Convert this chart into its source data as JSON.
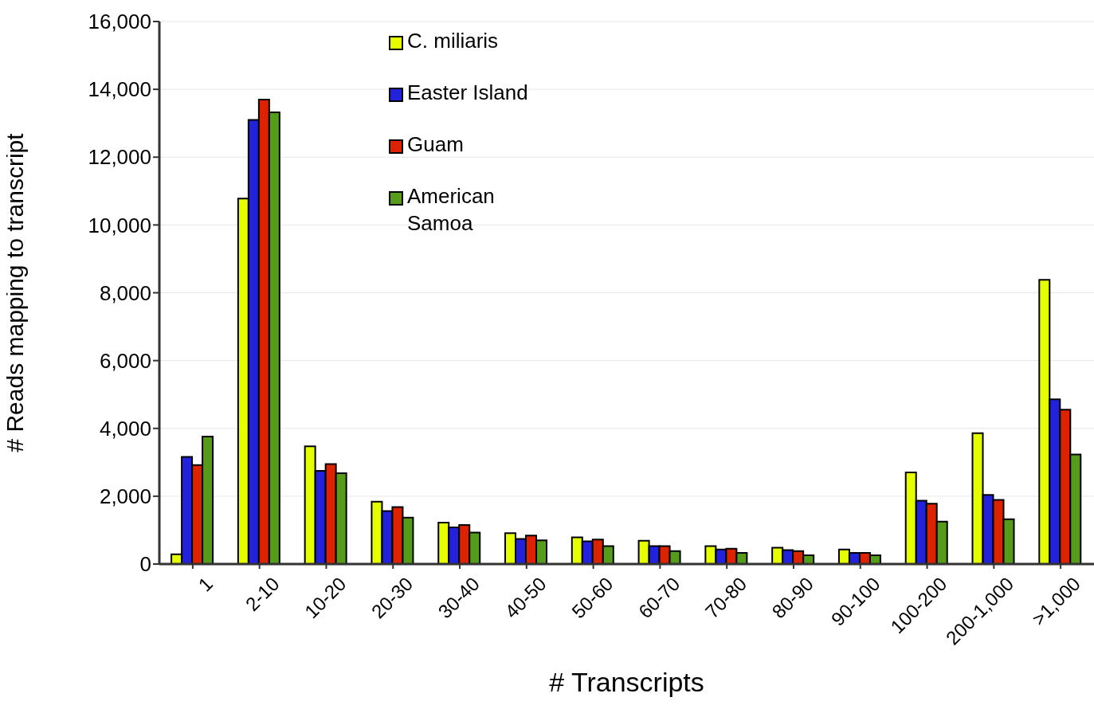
{
  "chart_data": {
    "type": "bar",
    "xlabel": "# Transcripts",
    "ylabel": "# Reads mapping to transcript",
    "categories": [
      "1",
      "2-10",
      "10-20",
      "20-30",
      "30-40",
      "40-50",
      "50-60",
      "60-70",
      "70-80",
      "80-90",
      "90-100",
      "100-200",
      "200-1,000",
      ">1,000"
    ],
    "series": [
      {
        "name": "C. miliaris",
        "color": "#e6ff00",
        "values": [
          290,
          10780,
          3470,
          1840,
          1220,
          910,
          790,
          690,
          530,
          480,
          430,
          2700,
          3860,
          8380
        ]
      },
      {
        "name": "Easter Island",
        "color": "#2222dd",
        "values": [
          3160,
          13100,
          2750,
          1560,
          1080,
          740,
          670,
          530,
          430,
          410,
          330,
          1870,
          2040,
          4860
        ]
      },
      {
        "name": "Guam",
        "color": "#dd2200",
        "values": [
          2920,
          13700,
          2950,
          1680,
          1150,
          840,
          720,
          530,
          450,
          380,
          330,
          1780,
          1890,
          4550
        ]
      },
      {
        "name": "American Samoa",
        "color": "#559c1a",
        "values": [
          3760,
          13320,
          2680,
          1370,
          930,
          700,
          530,
          380,
          330,
          260,
          260,
          1250,
          1320,
          3230
        ]
      }
    ],
    "ylim": [
      0,
      16000
    ],
    "yticks": [
      0,
      {
        "value": 2000,
        "label": "2,000"
      },
      {
        "value": 4000,
        "label": "4,000"
      },
      {
        "value": 6000,
        "label": "6,000"
      },
      {
        "value": 8000,
        "label": "8,000"
      },
      {
        "value": 10000,
        "label": "10,000"
      },
      {
        "value": 12000,
        "label": "12,000"
      },
      {
        "value": 14000,
        "label": "14,000"
      },
      {
        "value": 16000,
        "label": "16,000"
      }
    ],
    "grid": "y",
    "legend": "top"
  }
}
